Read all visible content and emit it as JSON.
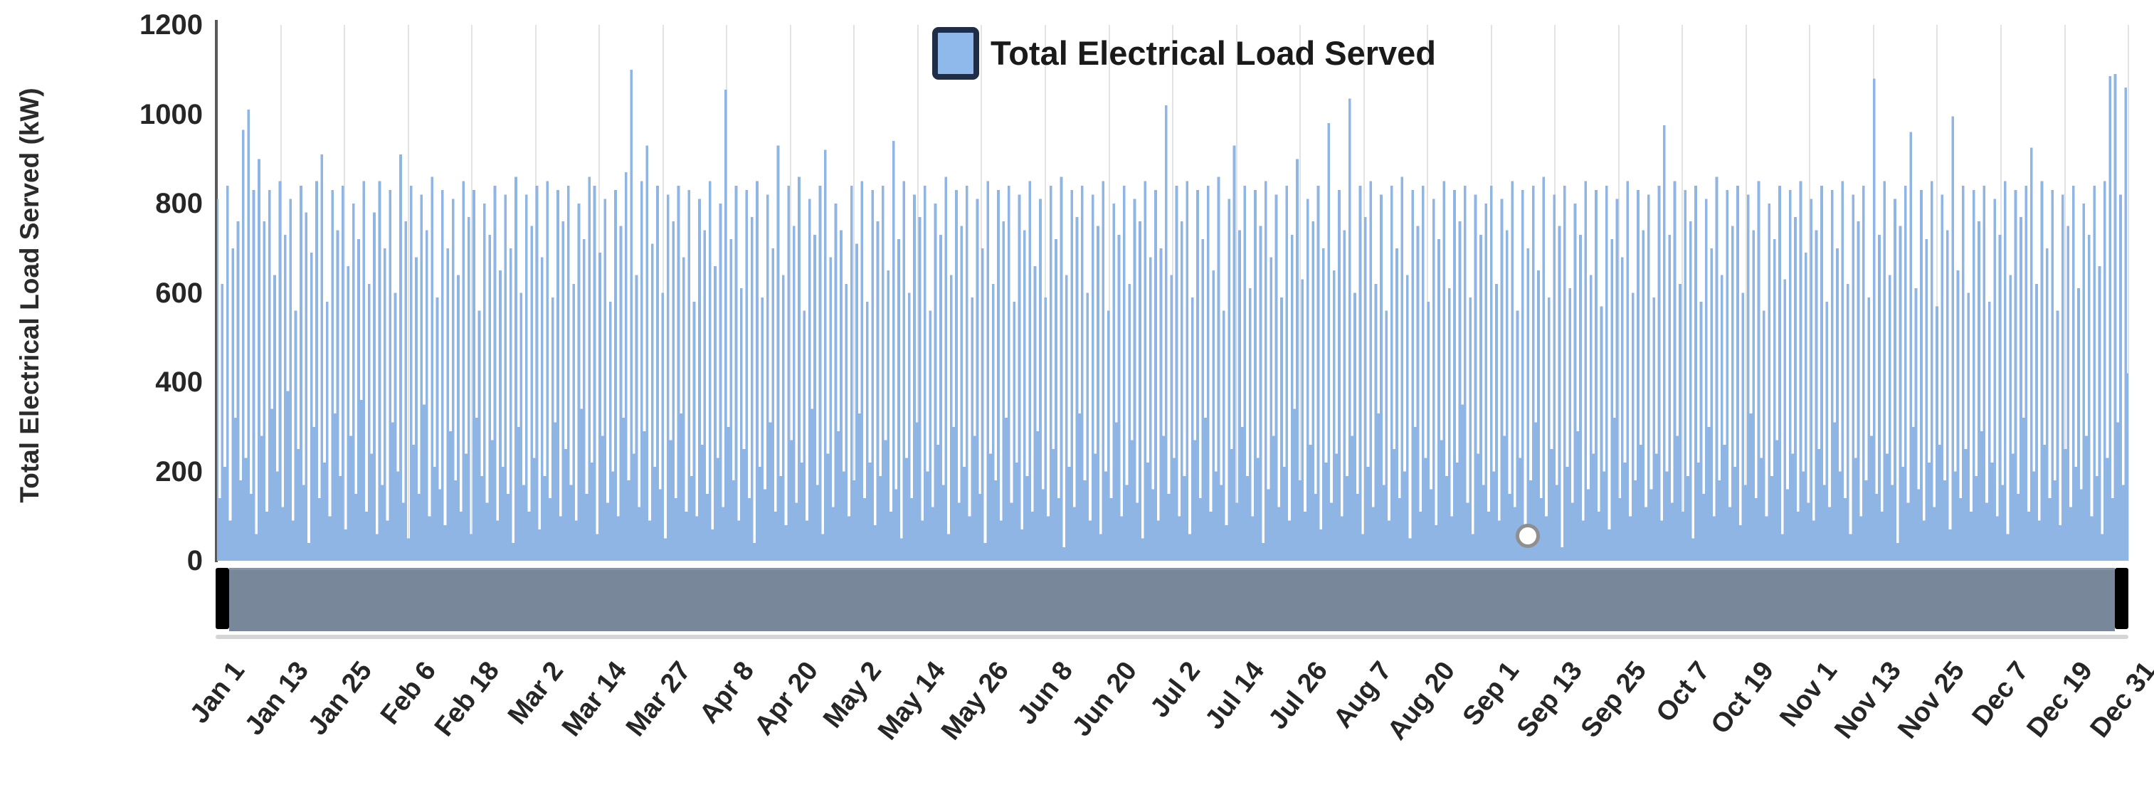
{
  "chart_data": {
    "type": "area",
    "title": "",
    "xlabel": "",
    "ylabel": "Total Electrical Load Served (kW)",
    "ylim": [
      0,
      1200
    ],
    "y_ticks": [
      0,
      200,
      400,
      600,
      800,
      1000,
      1200
    ],
    "x_tick_labels": [
      "Jan 1",
      "Jan 13",
      "Jan 25",
      "Feb 6",
      "Feb 18",
      "Mar 2",
      "Mar 14",
      "Mar 27",
      "Apr 8",
      "Apr 20",
      "May 2",
      "May 14",
      "May 26",
      "Jun 8",
      "Jun 20",
      "Jul 2",
      "Jul 14",
      "Jul 26",
      "Aug 7",
      "Aug 20",
      "Sep 1",
      "Sep 13",
      "Sep 25",
      "Oct 7",
      "Oct 19",
      "Nov 1",
      "Nov 13",
      "Nov 25",
      "Dec 7",
      "Dec 19",
      "Dec 31"
    ],
    "grid": "vertical-only",
    "legend_position": "top-center",
    "sampling": "two estimated samples per day (daily peak, daily trough), Jan 1 to Dec 31, 365 days",
    "marker_point": {
      "x_label": "Sep 7",
      "value": 60
    },
    "series": [
      {
        "name": "Total Electrical Load Served",
        "color": "#8fb5e5",
        "values": [
          810,
          140,
          620,
          210,
          840,
          90,
          700,
          320,
          760,
          180,
          965,
          230,
          1010,
          150,
          830,
          60,
          900,
          280,
          760,
          110,
          830,
          340,
          640,
          200,
          850,
          120,
          730,
          380,
          810,
          90,
          560,
          250,
          840,
          170,
          780,
          40,
          690,
          300,
          850,
          140,
          910,
          220,
          580,
          100,
          830,
          330,
          740,
          190,
          840,
          70,
          660,
          280,
          800,
          150,
          720,
          360,
          850,
          110,
          620,
          240,
          780,
          60,
          850,
          170,
          700,
          90,
          830,
          310,
          600,
          200,
          910,
          130,
          760,
          50,
          840,
          260,
          680,
          150,
          820,
          350,
          740,
          100,
          860,
          210,
          590,
          160,
          830,
          80,
          700,
          290,
          810,
          180,
          640,
          110,
          850,
          240,
          770,
          60,
          830,
          320,
          560,
          190,
          800,
          130,
          730,
          270,
          840,
          90,
          650,
          210,
          820,
          150,
          700,
          40,
          860,
          300,
          600,
          170,
          820,
          110,
          750,
          230,
          840,
          70,
          680,
          190,
          850,
          140,
          590,
          310,
          830,
          100,
          760,
          250,
          840,
          170,
          620,
          90,
          800,
          340,
          720,
          150,
          860,
          220,
          840,
          60,
          690,
          280,
          810,
          130,
          580,
          200,
          830,
          100,
          750,
          320,
          870,
          180,
          1100,
          240,
          640,
          120,
          850,
          290,
          930,
          90,
          710,
          210,
          840,
          160,
          600,
          50,
          820,
          270,
          760,
          140,
          840,
          330,
          680,
          110,
          830,
          190,
          580,
          100,
          810,
          260,
          740,
          150,
          850,
          70,
          660,
          230,
          800,
          120,
          1055,
          300,
          720,
          180,
          840,
          90,
          610,
          250,
          830,
          140,
          770,
          40,
          850,
          210,
          590,
          160,
          820,
          310,
          700,
          110,
          930,
          190,
          640,
          80,
          840,
          270,
          750,
          130,
          860,
          220,
          560,
          90,
          810,
          340,
          730,
          170,
          840,
          60,
          920,
          240,
          680,
          120,
          800,
          290,
          740,
          200,
          620,
          100,
          840,
          180,
          710,
          330,
          850,
          140,
          580,
          220,
          830,
          80,
          760,
          190,
          840,
          270,
          650,
          110,
          940,
          160,
          720,
          50,
          850,
          230,
          600,
          140,
          820,
          310,
          770,
          90,
          840,
          200,
          560,
          120,
          800,
          260,
          730,
          170,
          860,
          60,
          640,
          300,
          830,
          130,
          750,
          210,
          840,
          100,
          590,
          280,
          810,
          150,
          700,
          40,
          850,
          240,
          620,
          180,
          830,
          90,
          760,
          320,
          840,
          130,
          580,
          220,
          820,
          70,
          740,
          190,
          850,
          110,
          660,
          290,
          810,
          160,
          590,
          100,
          840,
          250,
          720,
          140,
          860,
          30,
          640,
          210,
          830,
          120,
          770,
          330,
          840,
          180,
          600,
          90,
          820,
          240,
          750,
          60,
          850,
          200,
          560,
          140,
          800,
          310,
          730,
          100,
          840,
          170,
          620,
          270,
          810,
          130,
          760,
          50,
          850,
          220,
          680,
          160,
          830,
          90,
          700,
          280,
          1020,
          150,
          640,
          230,
          840,
          100,
          760,
          190,
          850,
          60,
          590,
          270,
          830,
          140,
          720,
          320,
          840,
          110,
          650,
          200,
          860,
          170,
          560,
          80,
          810,
          250,
          930,
          130,
          740,
          300,
          840,
          190,
          610,
          100,
          830,
          230,
          750,
          40,
          850,
          160,
          680,
          280,
          820,
          120,
          590,
          210,
          840,
          90,
          730,
          340,
          900,
          180,
          630,
          110,
          810,
          260,
          760,
          150,
          840,
          70,
          700,
          220,
          980,
          130,
          650,
          240,
          830,
          100,
          740,
          190,
          1035,
          280,
          600,
          150,
          840,
          60,
          770,
          210,
          850,
          120,
          620,
          330,
          820,
          170,
          560,
          90,
          840,
          250,
          700,
          140,
          860,
          200,
          640,
          50,
          830,
          300,
          750,
          110,
          840,
          230,
          580,
          160,
          810,
          80,
          720,
          270,
          850,
          190,
          610,
          100,
          830,
          220,
          760,
          350,
          840,
          130,
          590,
          60,
          820,
          240,
          730,
          170,
          800,
          110,
          840,
          200,
          620,
          90,
          810,
          280,
          740,
          150,
          850,
          120,
          560,
          230,
          830,
          60,
          700,
          180,
          840,
          310,
          650,
          140,
          860,
          100,
          590,
          250,
          820,
          170,
          750,
          30,
          840,
          210,
          610,
          130,
          800,
          290,
          730,
          90,
          850,
          160,
          640,
          240,
          830,
          110,
          570,
          200,
          840,
          70,
          720,
          320,
          810,
          140,
          680,
          220,
          850,
          100,
          600,
          180,
          830,
          260,
          740,
          120,
          820,
          160,
          590,
          240,
          840,
          90,
          975,
          200,
          730,
          130,
          850,
          280,
          620,
          110,
          830,
          190,
          760,
          50,
          840,
          220,
          580,
          150,
          810,
          300,
          700,
          100,
          860,
          180,
          640,
          260,
          830,
          120,
          750,
          210,
          840,
          80,
          600,
          170,
          820,
          330,
          740,
          140,
          850,
          230,
          560,
          100,
          800,
          190,
          720,
          270,
          840,
          60,
          630,
          160,
          830,
          240,
          770,
          110,
          850,
          200,
          690,
          130,
          810,
          90,
          740,
          250,
          840,
          170,
          580,
          120,
          830,
          310,
          700,
          200,
          850,
          140,
          620,
          60,
          820,
          230,
          760,
          100,
          840,
          180,
          590,
          280,
          1080,
          150,
          730,
          110,
          850,
          240,
          640,
          170,
          810,
          40,
          750,
          210,
          840,
          130,
          960,
          300,
          610,
          160,
          830,
          90,
          720,
          220,
          850,
          120,
          570,
          260,
          820,
          180,
          740,
          70,
          995,
          200,
          650,
          140,
          840,
          250,
          600,
          110,
          830,
          190,
          760,
          290,
          840,
          130,
          580,
          220,
          810,
          100,
          730,
          170,
          850,
          60,
          640,
          240,
          830,
          150,
          770,
          320,
          840,
          110,
          925,
          200,
          620,
          90,
          850,
          260,
          700,
          140,
          830,
          180,
          560,
          80,
          820,
          250,
          750,
          120,
          840,
          210,
          610,
          160,
          800,
          280,
          730,
          100,
          840,
          190,
          660,
          60,
          850,
          230,
          1085,
          140,
          1090,
          310,
          820,
          170,
          1060,
          420
        ]
      }
    ]
  },
  "styles": {
    "series_fill": "#8fb5e5",
    "legend_swatch_fill": "#8fb9ea",
    "legend_swatch_border": "#1f2e46",
    "axis_line": "#58595b",
    "gridline": "#e3e3e3",
    "scrollbar_fill": "#78889a",
    "scrollbar_caps": "#000000",
    "track_line": "#d5d5d5",
    "text": "#262626"
  }
}
